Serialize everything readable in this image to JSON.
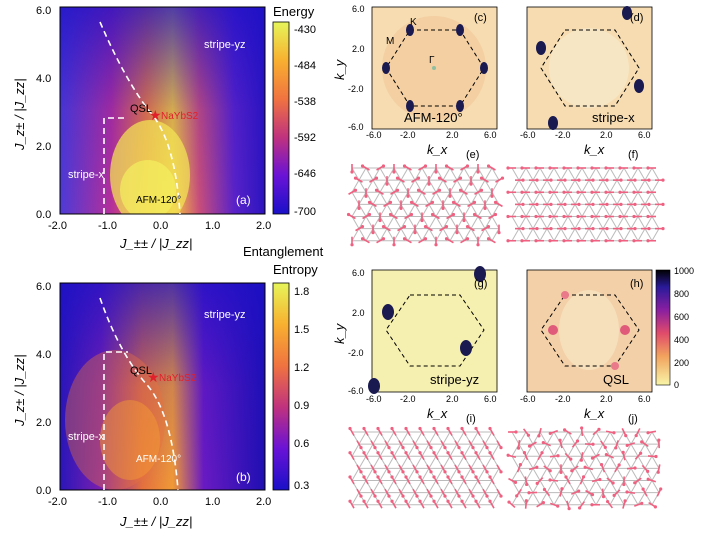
{
  "panel_a": {
    "ylabel": "J_z± / |J_zz|",
    "xlabel": "J_±± / |J_zz|",
    "xticks": [
      "-2.0",
      "-1.0",
      "0.0",
      "1.0",
      "2.0"
    ],
    "yticks": [
      "0.0",
      "2.0",
      "4.0",
      "6.0"
    ],
    "phases": {
      "stripe_yz": "stripe-yz",
      "stripe_x": "stripe-x",
      "qsl": "QSL",
      "afm": "AFM-120°",
      "marker": "NaYbS2"
    },
    "tag": "(a)",
    "colorbar_title": "Energy",
    "colorbar_ticks": [
      "-430",
      "-484",
      "-538",
      "-592",
      "-646",
      "-700"
    ]
  },
  "panel_b": {
    "ylabel": "J_z± / |J_zz|",
    "xlabel": "J_±± / |J_zz|",
    "xticks": [
      "-2.0",
      "-1.0",
      "0.0",
      "1.0",
      "2.0"
    ],
    "yticks": [
      "0.0",
      "2.0",
      "4.0",
      "6.0"
    ],
    "phases": {
      "stripe_yz": "stripe-yz",
      "stripe_x": "stripe-x",
      "qsl": "QSL",
      "afm": "AFM-120°",
      "marker": "NaYbS2"
    },
    "tag": "(b)",
    "colorbar_title_1": "Entanglement",
    "colorbar_title_2": "Entropy",
    "colorbar_ticks": [
      "1.8",
      "1.5",
      "1.2",
      "0.9",
      "0.6",
      "0.3"
    ]
  },
  "sf_panels": {
    "ky": "k_y",
    "kx": "k_x",
    "xticks": [
      "-6.0",
      "-2.0",
      "2.0",
      "6.0"
    ],
    "yticks": [
      "6.0",
      "2.0",
      "-2.0",
      "-6.0"
    ],
    "c": {
      "tag": "(c)",
      "label": "AFM-120°",
      "K": "K",
      "M": "M",
      "G": "Γ"
    },
    "d": {
      "tag": "(d)",
      "label": "stripe-x"
    },
    "g": {
      "tag": "(g)",
      "label": "stripe-yz"
    },
    "h": {
      "tag": "(h)",
      "label": "QSL"
    },
    "sf_colorbar_ticks": [
      "1000",
      "800",
      "600",
      "400",
      "200",
      "0"
    ]
  },
  "lattice_tags": {
    "e": "(e)",
    "f": "(f)",
    "i": "(i)",
    "j": "(j)"
  },
  "colors": {
    "dashed": "#ffffff",
    "star": "#e0202a",
    "spin": "#f06080",
    "lattice": "#bbbbbb"
  }
}
